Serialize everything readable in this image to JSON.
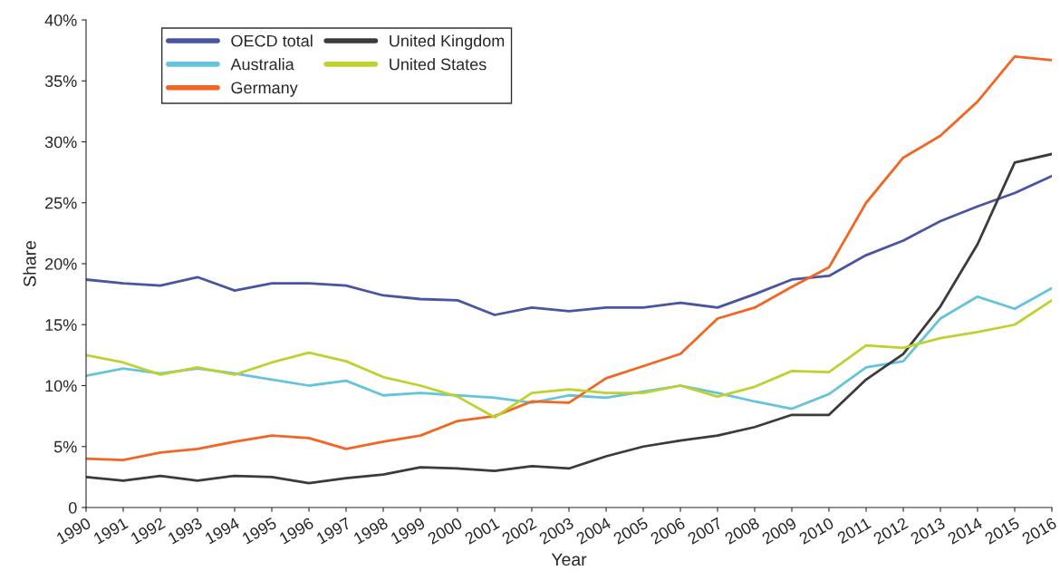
{
  "chart_data": {
    "type": "line",
    "xlabel": "Year",
    "ylabel": "Share",
    "x": [
      1990,
      1991,
      1992,
      1993,
      1994,
      1995,
      1996,
      1997,
      1998,
      1999,
      2000,
      2001,
      2002,
      2003,
      2004,
      2005,
      2006,
      2007,
      2008,
      2009,
      2010,
      2011,
      2012,
      2013,
      2014,
      2015,
      2016
    ],
    "xlim": [
      1990,
      2016
    ],
    "xticks": [
      1990,
      1991,
      1992,
      1993,
      1994,
      1995,
      1996,
      1997,
      1998,
      1999,
      2000,
      2001,
      2002,
      2003,
      2004,
      2005,
      2006,
      2007,
      2008,
      2009,
      2010,
      2011,
      2012,
      2013,
      2014,
      2015,
      2016
    ],
    "ylim": [
      0,
      40
    ],
    "yticks": [
      {
        "value": 0,
        "label": "0"
      },
      {
        "value": 5,
        "label": "5%"
      },
      {
        "value": 10,
        "label": "10%"
      },
      {
        "value": 15,
        "label": "15%"
      },
      {
        "value": 20,
        "label": "20%"
      },
      {
        "value": 25,
        "label": "25%"
      },
      {
        "value": 30,
        "label": "30%"
      },
      {
        "value": 35,
        "label": "35%"
      },
      {
        "value": 40,
        "label": "40%"
      }
    ],
    "grid": false,
    "legend": "top left",
    "marker": "none",
    "line_style": "solid",
    "series": [
      {
        "name": "OECD total",
        "color": "#4a55a2",
        "values": [
          18.7,
          18.4,
          18.2,
          18.9,
          17.8,
          18.4,
          18.4,
          18.2,
          17.4,
          17.1,
          17.0,
          15.8,
          16.4,
          16.1,
          16.4,
          16.4,
          16.8,
          16.4,
          17.5,
          18.7,
          19.0,
          20.7,
          21.9,
          23.5,
          24.7,
          25.8,
          27.2
        ]
      },
      {
        "name": "Australia",
        "color": "#65c3dc",
        "values": [
          10.8,
          11.4,
          11.0,
          11.4,
          11.0,
          10.5,
          10.0,
          10.4,
          9.2,
          9.4,
          9.2,
          9.0,
          8.6,
          9.2,
          9.0,
          9.5,
          10.0,
          9.4,
          8.7,
          8.1,
          9.3,
          11.5,
          12.0,
          15.5,
          17.3,
          16.3,
          18.0
        ]
      },
      {
        "name": "Germany",
        "color": "#f26522",
        "values": [
          4.0,
          3.9,
          4.5,
          4.8,
          5.4,
          5.9,
          5.7,
          4.8,
          5.4,
          5.9,
          7.1,
          7.5,
          8.7,
          8.6,
          10.6,
          11.6,
          12.6,
          15.5,
          16.4,
          18.1,
          19.7,
          25.0,
          28.7,
          30.5,
          33.3,
          37.0,
          36.7
        ]
      },
      {
        "name": "United Kingdom",
        "color": "#3d3a3b",
        "values": [
          2.5,
          2.2,
          2.6,
          2.2,
          2.6,
          2.5,
          2.0,
          2.4,
          2.7,
          3.3,
          3.2,
          3.0,
          3.4,
          3.2,
          4.2,
          5.0,
          5.5,
          5.9,
          6.6,
          7.6,
          7.6,
          10.5,
          12.6,
          16.5,
          21.6,
          28.3,
          29.0
        ]
      },
      {
        "name": "United States",
        "color": "#bfd12f",
        "values": [
          12.5,
          11.9,
          10.9,
          11.5,
          10.9,
          11.9,
          12.7,
          12.0,
          10.7,
          10.0,
          9.1,
          7.4,
          9.4,
          9.7,
          9.4,
          9.4,
          10.0,
          9.1,
          9.9,
          11.2,
          11.1,
          13.3,
          13.1,
          13.9,
          14.4,
          15.0,
          17.0
        ]
      }
    ]
  }
}
